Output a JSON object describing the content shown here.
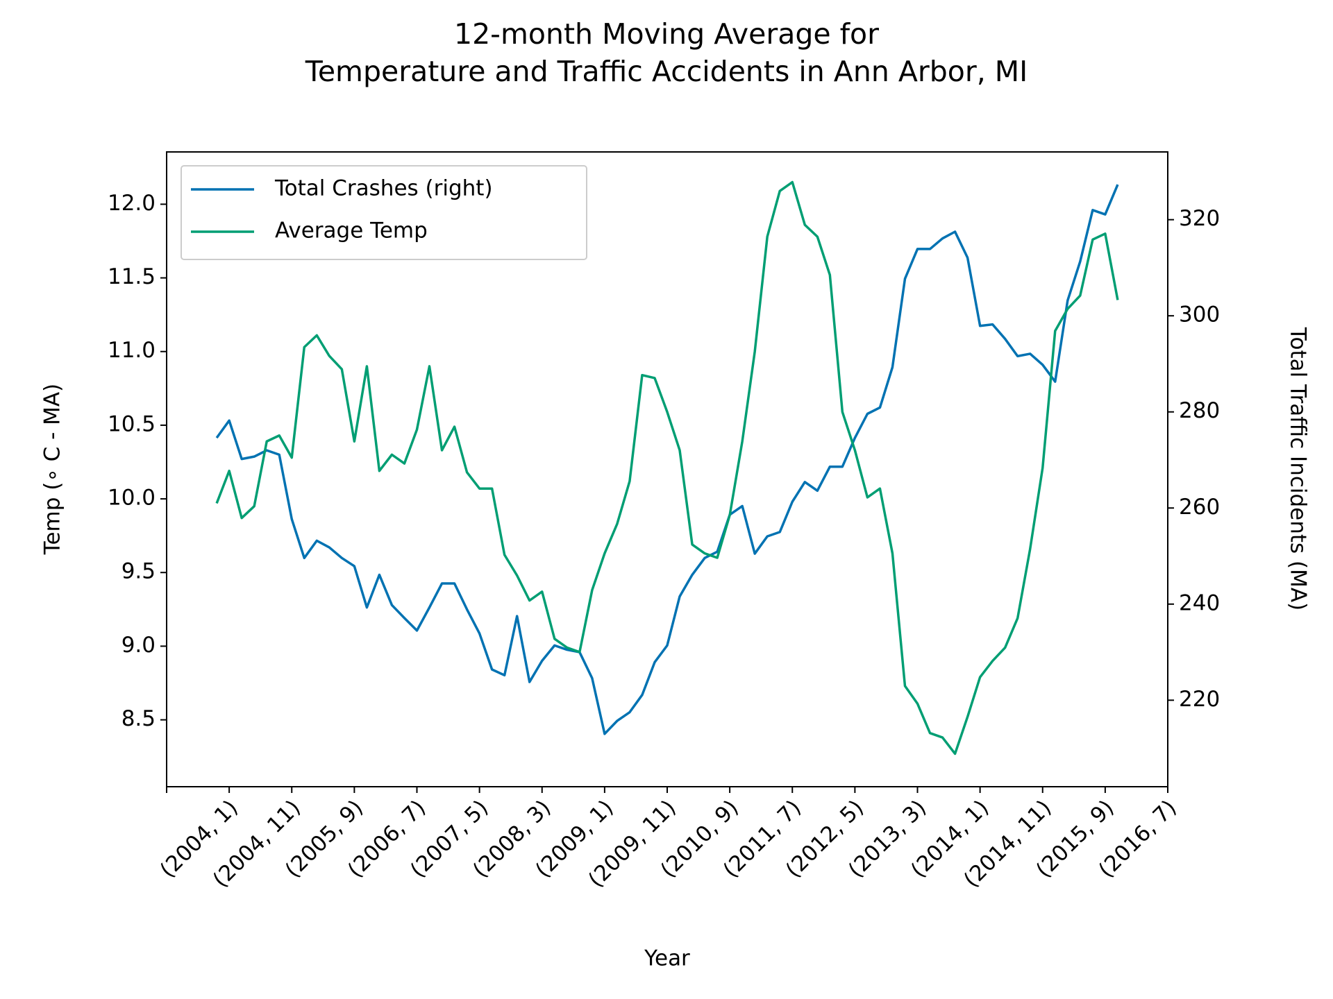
{
  "chart_data": {
    "type": "line",
    "title": [
      "12-month Moving Average for",
      "Temperature and Traffic Accidents in Ann Arbor, MI"
    ],
    "x_label": "Year",
    "y_label": "Temp (∘ C - MA)",
    "y2_label": "Total Traffic Incidents (MA)",
    "x": [
      8,
      10,
      12,
      14,
      16,
      18,
      20,
      22,
      24,
      26,
      28,
      30,
      32,
      34,
      36,
      38,
      40,
      42,
      44,
      46,
      48,
      50,
      52,
      54,
      56,
      58,
      60,
      62,
      64,
      66,
      68,
      70,
      72,
      74,
      76,
      78,
      80,
      82,
      84,
      86,
      88,
      90,
      92,
      94,
      96,
      98,
      100,
      102,
      104,
      106,
      108,
      110,
      112,
      114,
      116,
      118,
      120,
      122,
      124,
      126,
      128,
      130,
      132,
      134,
      136,
      138,
      140,
      142,
      144,
      146,
      148,
      150,
      152
    ],
    "series": [
      {
        "name": "Total Crashes (right)",
        "color": "#0072b2",
        "axis": "y2",
        "values": [
          274.6,
          278.2,
          270.2,
          270.7,
          272.0,
          271.1,
          257.7,
          249.6,
          253.2,
          251.8,
          249.6,
          247.9,
          239.3,
          246.1,
          239.8,
          237.1,
          234.5,
          239.3,
          244.3,
          244.3,
          238.9,
          233.9,
          226.4,
          225.2,
          237.5,
          223.8,
          228.2,
          231.4,
          230.5,
          230.0,
          224.6,
          213.0,
          215.7,
          217.5,
          221.1,
          227.9,
          231.4,
          241.6,
          246.1,
          249.6,
          250.9,
          258.6,
          260.4,
          250.5,
          254.1,
          255.0,
          261.3,
          265.4,
          263.6,
          268.6,
          268.6,
          274.6,
          279.6,
          280.9,
          289.3,
          307.7,
          313.9,
          313.9,
          316.1,
          317.5,
          312.1,
          297.9,
          298.2,
          295.2,
          291.6,
          292.1,
          289.8,
          286.3,
          303.2,
          311.3,
          322.0,
          321.1,
          327.3
        ]
      },
      {
        "name": "Average Temp",
        "color": "#009e73",
        "values": [
          9.97,
          10.19,
          9.87,
          9.95,
          10.39,
          10.43,
          10.28,
          11.03,
          11.11,
          10.97,
          10.88,
          10.39,
          10.9,
          10.19,
          10.3,
          10.24,
          10.47,
          10.9,
          10.33,
          10.49,
          10.18,
          10.07,
          10.07,
          9.62,
          9.48,
          9.31,
          9.37,
          9.05,
          8.99,
          8.96,
          9.38,
          9.63,
          9.83,
          10.12,
          10.84,
          10.82,
          10.59,
          10.33,
          9.69,
          9.63,
          9.6,
          9.89,
          10.39,
          11.0,
          11.78,
          12.09,
          12.15,
          11.86,
          11.78,
          11.52,
          10.59,
          10.33,
          10.01,
          10.07,
          9.63,
          8.73,
          8.61,
          8.41,
          8.38,
          8.27,
          8.52,
          8.79,
          8.9,
          8.99,
          9.19,
          9.66,
          10.21,
          11.14,
          11.29,
          11.38,
          11.76,
          11.8,
          11.35
        ]
      }
    ],
    "xlim": [
      0,
      160
    ],
    "xticks": [
      {
        "value": 0,
        "label": null
      },
      {
        "value": 10,
        "label": "(2004, 1)"
      },
      {
        "value": 20,
        "label": "(2004, 11)"
      },
      {
        "value": 30,
        "label": "(2005, 9)"
      },
      {
        "value": 40,
        "label": "(2006, 7)"
      },
      {
        "value": 50,
        "label": "(2007, 5)"
      },
      {
        "value": 60,
        "label": "(2008, 3)"
      },
      {
        "value": 70,
        "label": "(2009, 1)"
      },
      {
        "value": 80,
        "label": "(2009, 11)"
      },
      {
        "value": 90,
        "label": "(2010, 9)"
      },
      {
        "value": 100,
        "label": "(2011, 7)"
      },
      {
        "value": 110,
        "label": "(2012, 5)"
      },
      {
        "value": 120,
        "label": "(2013, 3)"
      },
      {
        "value": 130,
        "label": "(2014, 1)"
      },
      {
        "value": 140,
        "label": "(2014, 11)"
      },
      {
        "value": 150,
        "label": "(2015, 9)"
      },
      {
        "value": 160,
        "label": "(2016, 7)"
      }
    ],
    "ylim": [
      8.046,
      12.355
    ],
    "yticks": [
      8.5,
      {
        "value": 9,
        "label": "9.0"
      },
      9.5,
      {
        "value": 10,
        "label": "10.0"
      },
      10.5,
      {
        "value": 11,
        "label": "11.0"
      },
      11.5,
      {
        "value": 12,
        "label": "12.0"
      }
    ],
    "y2lim": [
      202.0,
      334.1
    ],
    "y2ticks": [
      220,
      240,
      260,
      280,
      300,
      320
    ],
    "legend": "upper left",
    "grid": false
  }
}
